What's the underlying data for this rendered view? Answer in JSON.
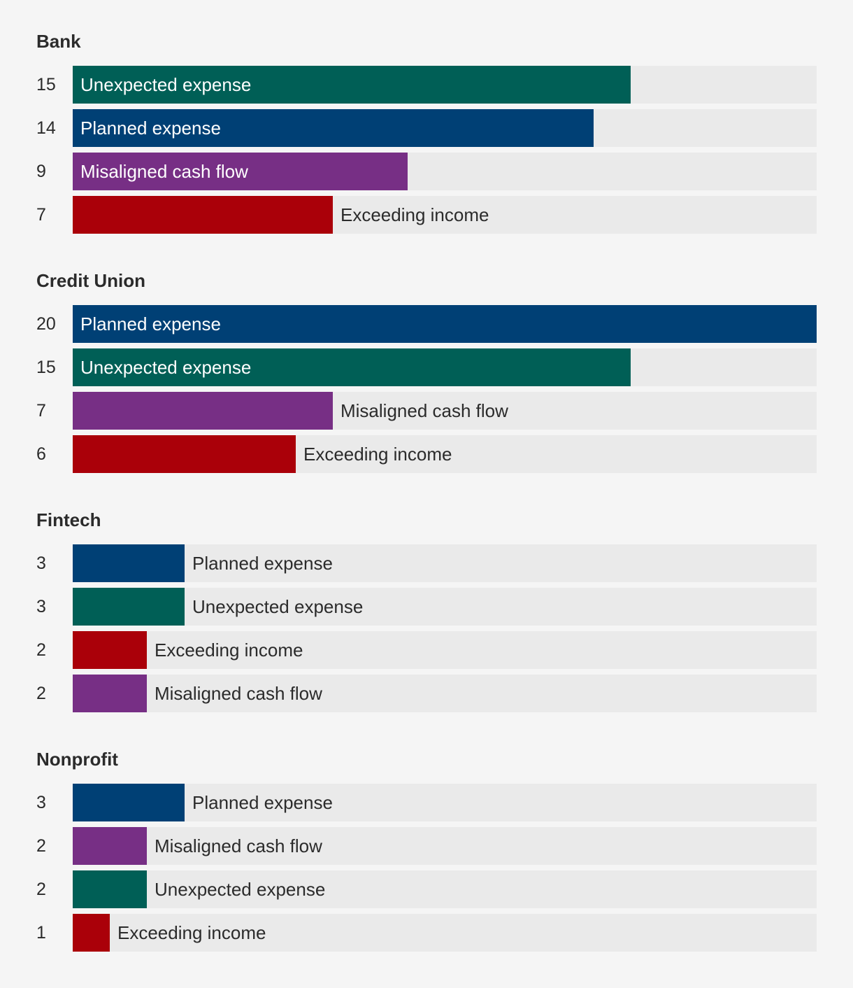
{
  "chart_data": {
    "type": "bar",
    "orientation": "horizontal",
    "xlim": [
      0,
      20
    ],
    "grid": false,
    "colors": {
      "Unexpected expense": "#005f56",
      "Planned expense": "#004075",
      "Misaligned cash flow": "#772f85",
      "Exceeding income": "#aa0009"
    },
    "groups": [
      {
        "name": "Bank",
        "items": [
          {
            "label": "Unexpected expense",
            "value": 15
          },
          {
            "label": "Planned expense",
            "value": 14
          },
          {
            "label": "Misaligned cash flow",
            "value": 9
          },
          {
            "label": "Exceeding income",
            "value": 7
          }
        ]
      },
      {
        "name": "Credit Union",
        "items": [
          {
            "label": "Planned expense",
            "value": 20
          },
          {
            "label": "Unexpected expense",
            "value": 15
          },
          {
            "label": "Misaligned cash flow",
            "value": 7
          },
          {
            "label": "Exceeding income",
            "value": 6
          }
        ]
      },
      {
        "name": "Fintech",
        "items": [
          {
            "label": "Planned expense",
            "value": 3
          },
          {
            "label": "Unexpected expense",
            "value": 3
          },
          {
            "label": "Exceeding income",
            "value": 2
          },
          {
            "label": "Misaligned cash flow",
            "value": 2
          }
        ]
      },
      {
        "name": "Nonprofit",
        "items": [
          {
            "label": "Planned expense",
            "value": 3
          },
          {
            "label": "Misaligned cash flow",
            "value": 2
          },
          {
            "label": "Unexpected expense",
            "value": 2
          },
          {
            "label": "Exceeding income",
            "value": 1
          }
        ]
      }
    ]
  }
}
